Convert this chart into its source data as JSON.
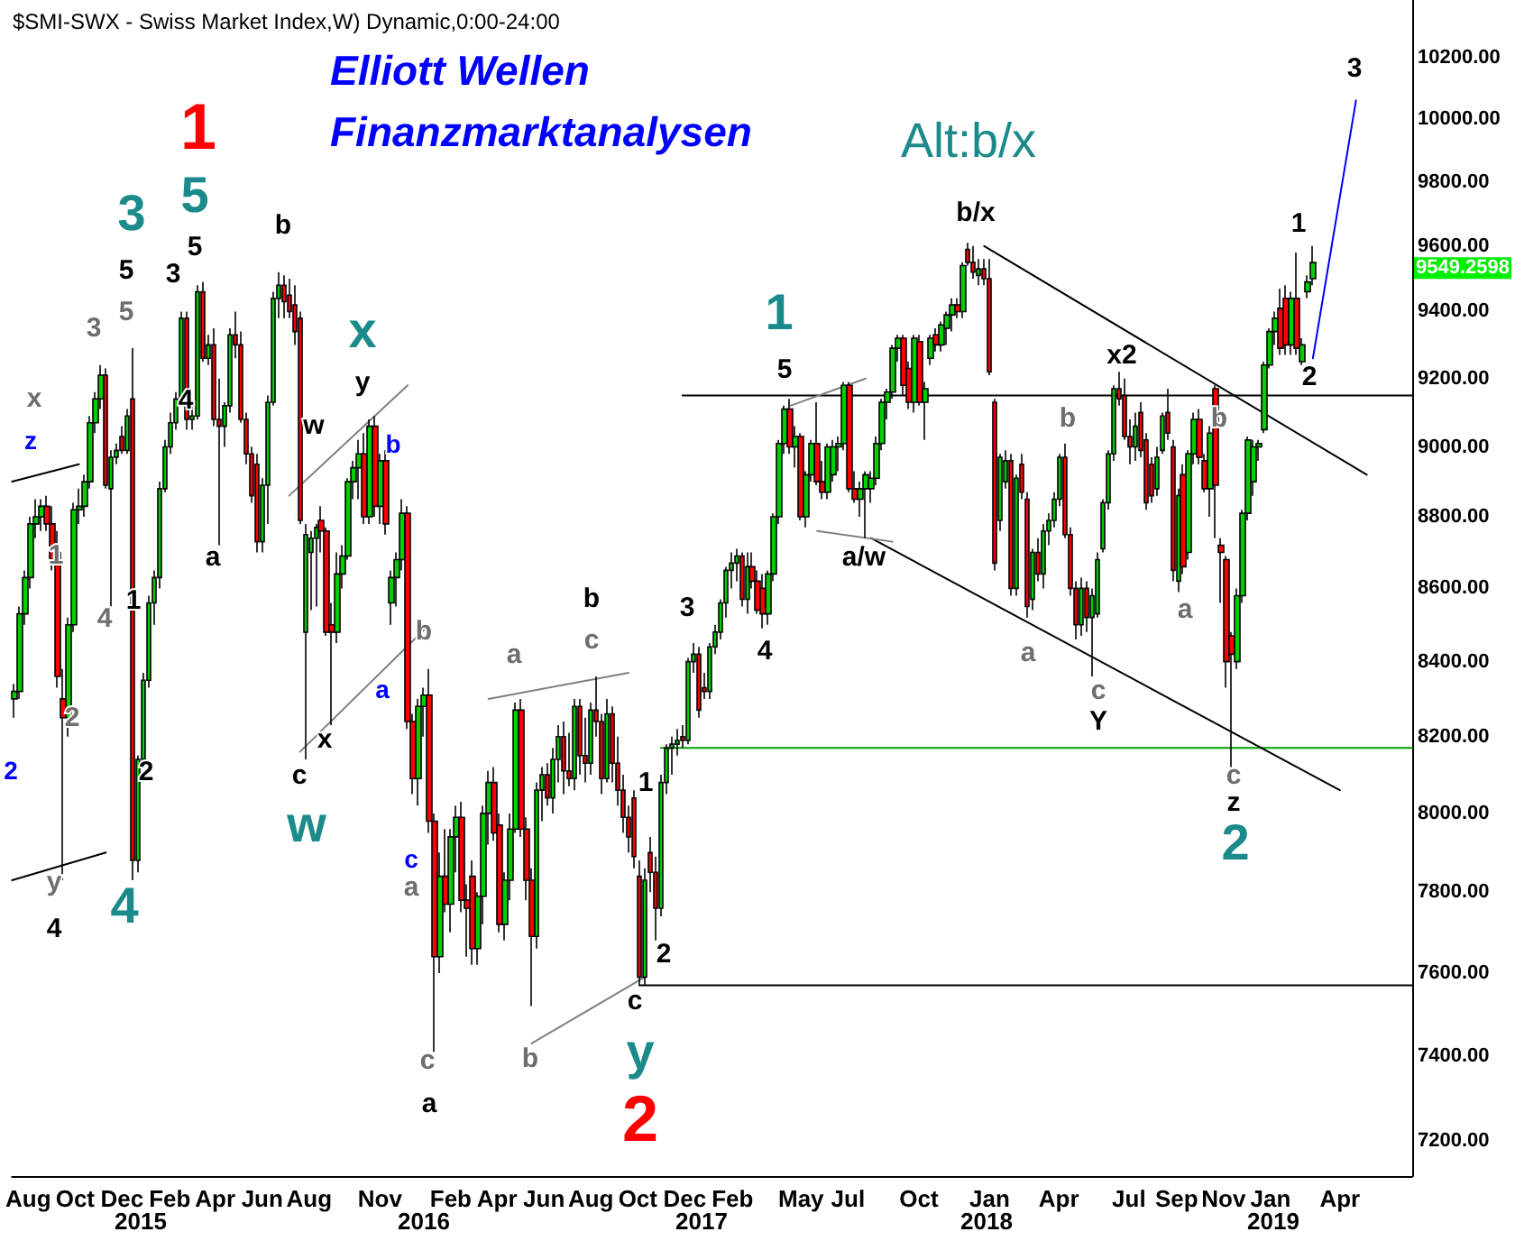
{
  "chart_data": {
    "type": "candlestick",
    "title": "$SMI-SWX - Swiss Market Index,W) Dynamic,0:00-24:00",
    "subtitle": "Elliott Wellen\nFinanzmarktanalysen",
    "log": "y",
    "marker": "none",
    "line_style": "solid",
    "xlim": [
      "2014-07-11",
      "2019-07-04"
    ],
    "ylim": [
      7120,
      10390
    ],
    "xticks": [
      {
        "value": "2014-08-01",
        "label": "Aug"
      },
      {
        "value": "2014-10-01",
        "label": "Oct"
      },
      {
        "value": "2014-12-01",
        "label": "Dec"
      },
      {
        "value": "2015-02-01",
        "label": "Feb"
      },
      {
        "value": "2015-04-01",
        "label": "Apr"
      },
      {
        "value": "2015-06-01",
        "label": "Jun"
      },
      {
        "value": "2015-08-01",
        "label": "Aug"
      },
      {
        "value": "2015-11-01",
        "label": "Nov"
      },
      {
        "value": "2016-02-01",
        "label": "Feb"
      },
      {
        "value": "2016-04-01",
        "label": "Apr"
      },
      {
        "value": "2016-06-01",
        "label": "Jun"
      },
      {
        "value": "2016-08-01",
        "label": "Aug"
      },
      {
        "value": "2016-10-01",
        "label": "Oct"
      },
      {
        "value": "2016-12-01",
        "label": "Dec"
      },
      {
        "value": "2017-02-01",
        "label": "Feb"
      },
      {
        "value": "2017-05-01",
        "label": "May"
      },
      {
        "value": "2017-07-01",
        "label": "Jul"
      },
      {
        "value": "2017-10-01",
        "label": "Oct"
      },
      {
        "value": "2018-01-01",
        "label": "Jan"
      },
      {
        "value": "2018-04-01",
        "label": "Apr"
      },
      {
        "value": "2018-07-01",
        "label": "Jul"
      },
      {
        "value": "2018-09-01",
        "label": "Sep"
      },
      {
        "value": "2018-11-01",
        "label": "Nov"
      },
      {
        "value": "2019-01-01",
        "label": "Jan"
      },
      {
        "value": "2019-04-01",
        "label": "Apr"
      }
    ],
    "yticks": [
      {
        "value": 7200,
        "label": "7200.00"
      },
      {
        "value": 7400,
        "label": "7400.00"
      },
      {
        "value": 7600,
        "label": "7600.00"
      },
      {
        "value": 7800,
        "label": "7800.00"
      },
      {
        "value": 8000,
        "label": "8000.00"
      },
      {
        "value": 8200,
        "label": "8200.00"
      },
      {
        "value": 8400,
        "label": "8400.00"
      },
      {
        "value": 8600,
        "label": "8600.00"
      },
      {
        "value": 8800,
        "label": "8800.00"
      },
      {
        "value": 9000,
        "label": "9000.00"
      },
      {
        "value": 9200,
        "label": "9200.00"
      },
      {
        "value": 9400,
        "label": "9400.00"
      },
      {
        "value": 9600,
        "label": "9600.00"
      },
      {
        "value": 9800,
        "label": "9800.00"
      },
      {
        "value": 10000,
        "label": "10000.00"
      },
      {
        "value": 10200,
        "label": "10200.00"
      }
    ],
    "x": [
      "2014-07-14",
      "2014-07-21",
      "2014-07-28",
      "2014-08-04",
      "2014-08-11",
      "2014-08-18",
      "2014-08-25",
      "2014-09-01",
      "2014-09-08",
      "2014-09-15",
      "2014-09-22",
      "2014-09-29",
      "2014-10-06",
      "2014-10-13",
      "2014-10-20",
      "2014-10-27",
      "2014-11-03",
      "2014-11-10",
      "2014-11-17",
      "2014-11-24",
      "2014-12-01",
      "2014-12-08",
      "2014-12-15",
      "2014-12-22",
      "2014-12-29",
      "2015-01-05",
      "2015-01-12",
      "2015-01-19",
      "2015-01-26",
      "2015-02-02",
      "2015-02-09",
      "2015-02-16",
      "2015-02-23",
      "2015-03-02",
      "2015-03-09",
      "2015-03-16",
      "2015-03-23",
      "2015-03-30",
      "2015-04-06",
      "2015-04-13",
      "2015-04-20",
      "2015-04-27",
      "2015-05-04",
      "2015-05-11",
      "2015-05-18",
      "2015-05-25",
      "2015-06-01",
      "2015-06-08",
      "2015-06-15",
      "2015-06-22",
      "2015-06-29",
      "2015-07-06",
      "2015-07-13",
      "2015-07-20",
      "2015-07-27",
      "2015-08-03",
      "2015-08-10",
      "2015-08-17",
      "2015-08-24",
      "2015-08-31",
      "2015-09-07",
      "2015-09-14",
      "2015-09-21",
      "2015-09-28",
      "2015-10-05",
      "2015-10-12",
      "2015-10-19",
      "2015-10-26",
      "2015-11-02",
      "2015-11-09",
      "2015-11-16",
      "2015-11-23",
      "2015-11-30",
      "2015-12-07",
      "2015-12-14",
      "2015-12-21",
      "2015-12-28",
      "2016-01-04",
      "2016-01-11",
      "2016-01-18",
      "2016-01-25",
      "2016-02-01",
      "2016-02-08",
      "2016-02-15",
      "2016-02-22",
      "2016-02-29",
      "2016-03-07",
      "2016-03-14",
      "2016-03-21",
      "2016-03-28",
      "2016-04-04",
      "2016-04-11",
      "2016-04-18",
      "2016-04-25",
      "2016-05-02",
      "2016-05-09",
      "2016-05-16",
      "2016-05-23",
      "2016-05-30",
      "2016-06-06",
      "2016-06-13",
      "2016-06-20",
      "2016-06-27",
      "2016-07-04",
      "2016-07-11",
      "2016-07-18",
      "2016-07-25",
      "2016-08-01",
      "2016-08-08",
      "2016-08-15",
      "2016-08-22",
      "2016-08-29",
      "2016-09-05",
      "2016-09-12",
      "2016-09-19",
      "2016-09-26",
      "2016-10-03",
      "2016-10-10",
      "2016-10-17",
      "2016-10-24",
      "2016-10-31",
      "2016-11-07",
      "2016-11-14",
      "2016-11-21",
      "2016-11-28",
      "2016-12-05",
      "2016-12-12",
      "2016-12-19",
      "2016-12-26",
      "2017-01-02",
      "2017-01-09",
      "2017-01-16",
      "2017-01-23",
      "2017-01-30",
      "2017-02-06",
      "2017-02-13",
      "2017-02-20",
      "2017-02-27",
      "2017-03-06",
      "2017-03-13",
      "2017-03-20",
      "2017-03-27",
      "2017-04-03",
      "2017-04-10",
      "2017-04-17",
      "2017-04-24",
      "2017-05-01",
      "2017-05-08",
      "2017-05-15",
      "2017-05-22",
      "2017-05-29",
      "2017-06-05",
      "2017-06-12",
      "2017-06-19",
      "2017-06-26",
      "2017-07-03",
      "2017-07-10",
      "2017-07-17",
      "2017-07-24",
      "2017-07-31",
      "2017-08-07",
      "2017-08-14",
      "2017-08-21",
      "2017-08-28",
      "2017-09-04",
      "2017-09-11",
      "2017-09-18",
      "2017-09-25",
      "2017-10-02",
      "2017-10-09",
      "2017-10-16",
      "2017-10-23",
      "2017-10-30",
      "2017-11-06",
      "2017-11-13",
      "2017-11-20",
      "2017-11-27",
      "2017-12-04",
      "2017-12-11",
      "2017-12-18",
      "2017-12-25",
      "2018-01-01",
      "2018-01-08",
      "2018-01-15",
      "2018-01-22",
      "2018-01-29",
      "2018-02-05",
      "2018-02-12",
      "2018-02-19",
      "2018-02-26",
      "2018-03-05",
      "2018-03-12",
      "2018-03-19",
      "2018-03-26",
      "2018-04-02",
      "2018-04-09",
      "2018-04-16",
      "2018-04-23",
      "2018-04-30",
      "2018-05-07",
      "2018-05-14",
      "2018-05-21",
      "2018-05-28",
      "2018-06-04",
      "2018-06-11",
      "2018-06-18",
      "2018-06-25",
      "2018-07-02",
      "2018-07-09",
      "2018-07-16",
      "2018-07-23",
      "2018-07-30",
      "2018-08-06",
      "2018-08-13",
      "2018-08-20",
      "2018-08-27",
      "2018-09-03",
      "2018-09-10",
      "2018-09-17",
      "2018-09-24",
      "2018-10-01",
      "2018-10-08",
      "2018-10-15",
      "2018-10-22",
      "2018-10-29",
      "2018-11-05",
      "2018-11-12",
      "2018-11-19",
      "2018-11-26",
      "2018-12-03",
      "2018-12-10",
      "2018-12-17",
      "2018-12-24",
      "2018-12-31",
      "2019-01-07",
      "2019-01-14",
      "2019-01-21",
      "2019-01-28",
      "2019-02-04",
      "2019-02-11",
      "2019-02-18",
      "2019-02-25"
    ],
    "ohlc": [
      [
        8300,
        8340,
        8250,
        8320
      ],
      [
        8320,
        8550,
        8300,
        8530
      ],
      [
        8530,
        8650,
        8500,
        8630
      ],
      [
        8630,
        8800,
        8600,
        8780
      ],
      [
        8780,
        8850,
        8740,
        8800
      ],
      [
        8800,
        8850,
        8760,
        8830
      ],
      [
        8830,
        8860,
        8760,
        8780
      ],
      [
        8780,
        8830,
        8650,
        8680
      ],
      [
        8700,
        8760,
        8330,
        8360
      ],
      [
        8300,
        8380,
        7830,
        8250
      ],
      [
        8250,
        8520,
        8200,
        8500
      ],
      [
        8500,
        8840,
        8480,
        8820
      ],
      [
        8820,
        8880,
        8780,
        8830
      ],
      [
        8830,
        8920,
        8800,
        8900
      ],
      [
        8900,
        9090,
        8880,
        9070
      ],
      [
        9070,
        9160,
        9040,
        9140
      ],
      [
        9140,
        9240,
        9110,
        9210
      ],
      [
        9210,
        9230,
        8880,
        8890
      ],
      [
        8880,
        8990,
        8550,
        8970
      ],
      [
        8970,
        9010,
        8950,
        8990
      ],
      [
        9030,
        9060,
        8980,
        8990
      ],
      [
        8990,
        9110,
        8980,
        9090
      ],
      [
        9140,
        9290,
        7830,
        7880
      ],
      [
        7880,
        8150,
        7850,
        8140
      ],
      [
        8140,
        8370,
        8120,
        8350
      ],
      [
        8350,
        8580,
        8330,
        8560
      ],
      [
        8560,
        8650,
        8500,
        8630
      ],
      [
        8630,
        8900,
        8600,
        8880
      ],
      [
        8880,
        9020,
        8870,
        9000
      ],
      [
        9000,
        9100,
        8980,
        9070
      ],
      [
        9070,
        9160,
        9050,
        9140
      ],
      [
        9140,
        9400,
        9130,
        9380
      ],
      [
        9380,
        9400,
        9050,
        9080
      ],
      [
        9080,
        9120,
        9050,
        9090
      ],
      [
        9090,
        9480,
        9080,
        9460
      ],
      [
        9460,
        9490,
        9250,
        9260
      ],
      [
        9260,
        9330,
        9240,
        9300
      ],
      [
        9300,
        9350,
        9060,
        9080
      ],
      [
        9080,
        9200,
        8720,
        9060
      ],
      [
        9060,
        9130,
        9000,
        9120
      ],
      [
        9120,
        9350,
        9100,
        9330
      ],
      [
        9330,
        9400,
        9260,
        9300
      ],
      [
        9300,
        9340,
        9070,
        9080
      ],
      [
        9080,
        9100,
        8950,
        8980
      ],
      [
        8980,
        9000,
        8840,
        8860
      ],
      [
        8950,
        8980,
        8700,
        8730
      ],
      [
        8730,
        8910,
        8700,
        8890
      ],
      [
        8890,
        9150,
        8780,
        9130
      ],
      [
        9130,
        9460,
        9120,
        9440
      ],
      [
        9440,
        9520,
        9380,
        9480
      ],
      [
        9480,
        9510,
        9380,
        9430
      ],
      [
        9450,
        9500,
        9380,
        9400
      ],
      [
        9420,
        9480,
        9300,
        9340
      ],
      [
        9380,
        9400,
        8780,
        8790
      ],
      [
        8480,
        8780,
        8140,
        8750
      ],
      [
        8700,
        8760,
        8540,
        8740
      ],
      [
        8740,
        8780,
        8550,
        8770
      ],
      [
        8790,
        8830,
        8700,
        8760
      ],
      [
        8760,
        8770,
        8470,
        8480
      ],
      [
        8500,
        8560,
        8230,
        8480
      ],
      [
        8480,
        8700,
        8450,
        8640
      ],
      [
        8640,
        8720,
        8600,
        8690
      ],
      [
        8690,
        8910,
        8680,
        8900
      ],
      [
        8900,
        8960,
        8850,
        8940
      ],
      [
        8940,
        9020,
        8850,
        8980
      ],
      [
        8980,
        9040,
        8780,
        8800
      ],
      [
        8800,
        9080,
        8780,
        9060
      ],
      [
        9060,
        9090,
        8800,
        8830
      ],
      [
        8830,
        8980,
        8780,
        8960
      ],
      [
        8960,
        8990,
        8750,
        8780
      ],
      [
        8560,
        8650,
        8500,
        8630
      ],
      [
        8630,
        8700,
        8550,
        8680
      ],
      [
        8680,
        8850,
        8650,
        8810
      ],
      [
        8810,
        8830,
        8220,
        8240
      ],
      [
        8240,
        8260,
        8050,
        8090
      ],
      [
        8090,
        8300,
        8020,
        8280
      ],
      [
        8280,
        8330,
        8200,
        8310
      ],
      [
        8310,
        8380,
        7950,
        7980
      ],
      [
        7980,
        8000,
        7410,
        7640
      ],
      [
        7640,
        7900,
        7600,
        7840
      ],
      [
        7840,
        7960,
        7750,
        7770
      ],
      [
        7770,
        7960,
        7700,
        7940
      ],
      [
        7940,
        8020,
        7850,
        7990
      ],
      [
        7990,
        8030,
        7750,
        7780
      ],
      [
        7780,
        7820,
        7640,
        7760
      ],
      [
        7840,
        7880,
        7620,
        7660
      ],
      [
        7660,
        7800,
        7620,
        7790
      ],
      [
        7790,
        8020,
        7720,
        8000
      ],
      [
        8000,
        8110,
        7920,
        8080
      ],
      [
        8080,
        8120,
        7930,
        7950
      ],
      [
        7970,
        8000,
        7700,
        7720
      ],
      [
        7720,
        7850,
        7680,
        7830
      ],
      [
        7830,
        8000,
        7780,
        7960
      ],
      [
        7960,
        8290,
        7950,
        8270
      ],
      [
        8270,
        8300,
        7940,
        7960
      ],
      [
        7960,
        7990,
        7780,
        7830
      ],
      [
        7830,
        7860,
        7520,
        7690
      ],
      [
        7690,
        8080,
        7660,
        8060
      ],
      [
        8060,
        8120,
        7980,
        8100
      ],
      [
        8100,
        8130,
        8020,
        8040
      ],
      [
        8040,
        8170,
        8000,
        8140
      ],
      [
        8140,
        8230,
        8080,
        8200
      ],
      [
        8200,
        8240,
        8050,
        8110
      ],
      [
        8110,
        8210,
        8070,
        8090
      ],
      [
        8090,
        8300,
        8060,
        8280
      ],
      [
        8280,
        8300,
        8100,
        8150
      ],
      [
        8150,
        8250,
        8080,
        8130
      ],
      [
        8130,
        8290,
        8100,
        8270
      ],
      [
        8270,
        8360,
        8200,
        8240
      ],
      [
        8240,
        8260,
        8050,
        8090
      ],
      [
        8090,
        8300,
        8080,
        8260
      ],
      [
        8260,
        8280,
        8080,
        8130
      ],
      [
        8130,
        8200,
        8020,
        8060
      ],
      [
        8060,
        8100,
        7950,
        7990
      ],
      [
        7990,
        8020,
        7900,
        7940
      ],
      [
        8040,
        8060,
        7860,
        7890
      ],
      [
        7840,
        7880,
        7570,
        7590
      ],
      [
        7590,
        7860,
        7570,
        7830
      ],
      [
        7900,
        7940,
        7800,
        7850
      ],
      [
        7850,
        7890,
        7680,
        7760
      ],
      [
        7760,
        8100,
        7740,
        8080
      ],
      [
        8080,
        8180,
        8050,
        8170
      ],
      [
        8170,
        8200,
        8100,
        8180
      ],
      [
        8180,
        8220,
        8150,
        8190
      ],
      [
        8200,
        8230,
        8170,
        8190
      ],
      [
        8190,
        8410,
        8180,
        8400
      ],
      [
        8400,
        8450,
        8370,
        8420
      ],
      [
        8420,
        8440,
        8250,
        8270
      ],
      [
        8330,
        8370,
        8300,
        8320
      ],
      [
        8320,
        8450,
        8300,
        8440
      ],
      [
        8440,
        8500,
        8420,
        8480
      ],
      [
        8480,
        8570,
        8460,
        8560
      ],
      [
        8560,
        8660,
        8520,
        8650
      ],
      [
        8650,
        8700,
        8600,
        8670
      ],
      [
        8670,
        8710,
        8620,
        8690
      ],
      [
        8690,
        8700,
        8550,
        8570
      ],
      [
        8570,
        8700,
        8530,
        8660
      ],
      [
        8660,
        8700,
        8600,
        8620
      ],
      [
        8620,
        8650,
        8530,
        8540
      ],
      [
        8600,
        8640,
        8490,
        8530
      ],
      [
        8530,
        8650,
        8500,
        8640
      ],
      [
        8640,
        8810,
        8620,
        8800
      ],
      [
        8800,
        9020,
        8780,
        9010
      ],
      [
        9010,
        9120,
        8980,
        9110
      ],
      [
        9110,
        9140,
        8980,
        9000
      ],
      [
        9000,
        9060,
        8940,
        9030
      ],
      [
        9030,
        9040,
        8790,
        8800
      ],
      [
        8800,
        8930,
        8770,
        8920
      ],
      [
        8920,
        9020,
        8900,
        9010
      ],
      [
        9010,
        9130,
        8890,
        8900
      ],
      [
        8900,
        8960,
        8850,
        8870
      ],
      [
        8870,
        9010,
        8850,
        9000
      ],
      [
        8920,
        9020,
        8900,
        9000
      ],
      [
        9000,
        9030,
        8930,
        9010
      ],
      [
        9010,
        9190,
        8990,
        9180
      ],
      [
        9180,
        9190,
        8870,
        8880
      ],
      [
        8880,
        8930,
        8840,
        8850
      ],
      [
        8850,
        8900,
        8800,
        8880
      ],
      [
        8880,
        8930,
        8740,
        8920
      ],
      [
        8880,
        8930,
        8840,
        8910
      ],
      [
        8910,
        9030,
        8890,
        9010
      ],
      [
        9010,
        9140,
        8990,
        9130
      ],
      [
        9130,
        9170,
        9080,
        9160
      ],
      [
        9160,
        9300,
        9140,
        9290
      ],
      [
        9290,
        9330,
        9250,
        9320
      ],
      [
        9320,
        9330,
        9150,
        9180
      ],
      [
        9230,
        9250,
        9110,
        9130
      ],
      [
        9130,
        9330,
        9100,
        9320
      ],
      [
        9310,
        9330,
        9120,
        9130
      ],
      [
        9130,
        9190,
        9020,
        9170
      ],
      [
        9260,
        9330,
        9240,
        9320
      ],
      [
        9330,
        9350,
        9280,
        9300
      ],
      [
        9300,
        9370,
        9280,
        9360
      ],
      [
        9350,
        9400,
        9300,
        9390
      ],
      [
        9390,
        9440,
        9340,
        9420
      ],
      [
        9420,
        9440,
        9380,
        9400
      ],
      [
        9400,
        9550,
        9380,
        9540
      ],
      [
        9590,
        9610,
        9540,
        9550
      ],
      [
        9550,
        9600,
        9500,
        9520
      ],
      [
        9510,
        9560,
        9480,
        9530
      ],
      [
        9530,
        9560,
        9480,
        9500
      ],
      [
        9500,
        9560,
        9210,
        9220
      ],
      [
        9130,
        9140,
        8650,
        8670
      ],
      [
        8790,
        8980,
        8760,
        8970
      ],
      [
        8900,
        8990,
        8880,
        8960
      ],
      [
        8960,
        8980,
        8580,
        8600
      ],
      [
        8600,
        8920,
        8580,
        8910
      ],
      [
        8950,
        8980,
        8850,
        8870
      ],
      [
        8850,
        8870,
        8520,
        8550
      ],
      [
        8570,
        8710,
        8540,
        8700
      ],
      [
        8700,
        8740,
        8620,
        8640
      ],
      [
        8640,
        8780,
        8600,
        8760
      ],
      [
        8760,
        8810,
        8720,
        8790
      ],
      [
        8790,
        8870,
        8770,
        8850
      ],
      [
        8850,
        8980,
        8830,
        8970
      ],
      [
        8970,
        9010,
        8740,
        8750
      ],
      [
        8750,
        8770,
        8580,
        8600
      ],
      [
        8600,
        8620,
        8460,
        8500
      ],
      [
        8500,
        8630,
        8470,
        8600
      ],
      [
        8600,
        8620,
        8480,
        8520
      ],
      [
        8520,
        8600,
        8360,
        8580
      ],
      [
        8530,
        8700,
        8520,
        8680
      ],
      [
        8710,
        8850,
        8700,
        8840
      ],
      [
        8840,
        8990,
        8820,
        8980
      ],
      [
        8980,
        9180,
        8960,
        9170
      ],
      [
        9170,
        9220,
        9120,
        9140
      ],
      [
        9150,
        9200,
        9020,
        9030
      ],
      [
        9030,
        9080,
        8950,
        9000
      ],
      [
        9000,
        9100,
        8960,
        9060
      ],
      [
        9100,
        9130,
        8970,
        8990
      ],
      [
        9020,
        9040,
        8820,
        8840
      ],
      [
        8950,
        8970,
        8840,
        8860
      ],
      [
        8880,
        9000,
        8860,
        8970
      ],
      [
        8990,
        9100,
        8980,
        9090
      ],
      [
        9100,
        9170,
        9020,
        9040
      ],
      [
        9000,
        9020,
        8620,
        8650
      ],
      [
        8620,
        8880,
        8590,
        8860
      ],
      [
        8920,
        8950,
        8640,
        8660
      ],
      [
        8700,
        8990,
        8680,
        8980
      ],
      [
        8980,
        9100,
        8950,
        9080
      ],
      [
        9080,
        9110,
        8950,
        8970
      ],
      [
        8960,
        8980,
        8870,
        8880
      ],
      [
        8880,
        9060,
        8800,
        9040
      ],
      [
        9170,
        9180,
        8740,
        8890
      ],
      [
        8720,
        8740,
        8560,
        8700
      ],
      [
        8680,
        8690,
        8330,
        8400
      ],
      [
        8470,
        8480,
        8120,
        8420
      ],
      [
        8400,
        8600,
        8380,
        8580
      ],
      [
        8580,
        8820,
        8560,
        8810
      ],
      [
        8810,
        9030,
        8790,
        9020
      ],
      [
        8900,
        9020,
        8860,
        9000
      ],
      [
        9000,
        9020,
        8960,
        9010
      ],
      [
        9050,
        9250,
        9040,
        9240
      ],
      [
        9240,
        9350,
        9230,
        9340
      ],
      [
        9340,
        9400,
        9300,
        9380
      ],
      [
        9410,
        9470,
        9270,
        9290
      ],
      [
        9440,
        9480,
        9270,
        9300
      ],
      [
        9300,
        9460,
        9270,
        9440
      ],
      [
        9440,
        9580,
        9270,
        9290
      ],
      [
        9250,
        9320,
        9240,
        9300
      ],
      [
        9460,
        9510,
        9440,
        9490
      ],
      [
        9500,
        9600,
        9480,
        9549.26
      ]
    ],
    "series": [
      {
        "type": "line",
        "x": [
          "2016-11-28",
          "2019-07-04"
        ],
        "values": [
          9150,
          9150
        ],
        "color": "#000000"
      },
      {
        "type": "line",
        "x": [
          "2016-10-31",
          "2019-07-04"
        ],
        "values": [
          8170,
          8170
        ],
        "color": "#00a000"
      },
      {
        "type": "line",
        "x": [
          "2016-10-03",
          "2019-07-04"
        ],
        "values": [
          7570,
          7570
        ],
        "color": "#000000"
      },
      {
        "type": "line",
        "x": [
          "2017-12-25",
          "2019-05-06"
        ],
        "values": [
          9600,
          8920
        ],
        "color": "#000000"
      },
      {
        "type": "line",
        "x": [
          "2017-07-31",
          "2019-04-01"
        ],
        "values": [
          8740,
          8060
        ],
        "color": "#000000"
      },
      {
        "type": "line",
        "x": [
          "2019-02-25",
          "2019-04-22"
        ],
        "values": [
          9260,
          10060
        ],
        "color": "#0000ff"
      },
      {
        "type": "line",
        "x": [
          "2017-04-17",
          "2017-07-24"
        ],
        "values": [
          9120,
          9200
        ],
        "color": "#808080"
      },
      {
        "type": "line",
        "x": [
          "2017-05-22",
          "2017-08-28"
        ],
        "values": [
          8760,
          8730
        ],
        "color": "#808080"
      },
      {
        "type": "line",
        "x": [
          "2015-07-06",
          "2015-12-07"
        ],
        "values": [
          8860,
          9180
        ],
        "color": "#808080"
      },
      {
        "type": "line",
        "x": [
          "2015-07-20",
          "2016-01-04"
        ],
        "values": [
          8160,
          8500
        ],
        "color": "#808080"
      },
      {
        "type": "line",
        "x": [
          "2016-03-21",
          "2016-09-19"
        ],
        "values": [
          8300,
          8370
        ],
        "color": "#808080"
      },
      {
        "type": "line",
        "x": [
          "2016-05-16",
          "2016-10-10"
        ],
        "values": [
          7430,
          7590
        ],
        "color": "#808080"
      },
      {
        "type": "line",
        "x": [
          "2014-07-11",
          "2014-11-10"
        ],
        "values": [
          7830,
          7900
        ],
        "color": "#000000"
      },
      {
        "type": "line",
        "x": [
          "2014-07-11",
          "2014-10-06"
        ],
        "values": [
          8900,
          8950
        ],
        "color": "#000000"
      }
    ],
    "annotations": [
      "1",
      "2",
      "5",
      "3",
      "4",
      "x",
      "w",
      "y",
      "1",
      "2",
      "Alt:b/x",
      "5",
      "3",
      "5",
      "b",
      "4",
      "a",
      "w",
      "y",
      "c",
      "x",
      "a",
      "b",
      "1",
      "2",
      "c",
      "3",
      "4",
      "5",
      "a/w",
      "b/x",
      "x2",
      "Y",
      "z",
      "1",
      "2",
      "3",
      "1",
      "2",
      "4",
      "x",
      "3",
      "5",
      "1",
      "4",
      "2",
      "y",
      "b",
      "a",
      "c",
      "a",
      "c",
      "b",
      "b",
      "a",
      "c",
      "b",
      "a",
      "c",
      "z",
      "2",
      "b",
      "a",
      "c",
      "9549.2598",
      "2015",
      "2016",
      "2017",
      "2018",
      "2019"
    ]
  }
}
